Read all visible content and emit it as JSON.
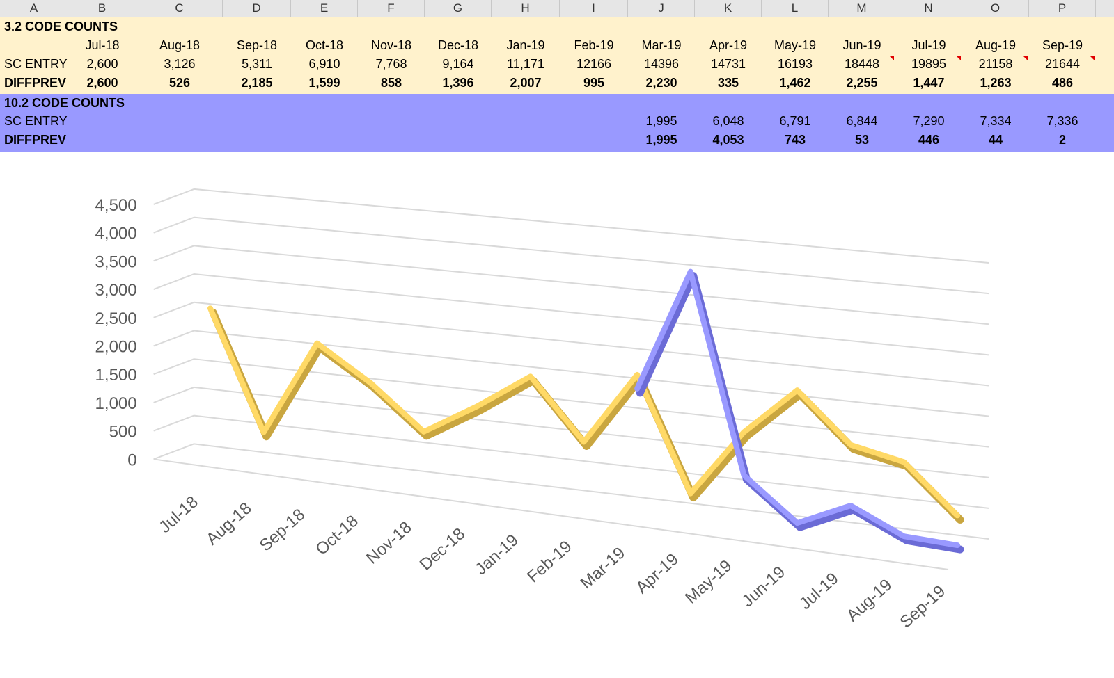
{
  "sheet": {
    "column_letters": [
      "A",
      "B",
      "C",
      "D",
      "E",
      "F",
      "G",
      "H",
      "I",
      "J",
      "K",
      "L",
      "M",
      "N",
      "O",
      "P"
    ],
    "months": [
      "Jul-18",
      "Aug-18",
      "Sep-18",
      "Oct-18",
      "Nov-18",
      "Dec-18",
      "Jan-19",
      "Feb-19",
      "Mar-19",
      "Apr-19",
      "May-19",
      "Jun-19",
      "Jul-19",
      "Aug-19",
      "Sep-19"
    ],
    "section_32": {
      "title": "3.2 CODE COUNTS",
      "rows": [
        {
          "label": "SC ENTRY",
          "bold": false,
          "values": [
            "2,600",
            "3,126",
            "5,311",
            "6,910",
            "7,768",
            "9,164",
            "11,171",
            "12166",
            "14396",
            "14731",
            "16193",
            "18448",
            "19895",
            "21158",
            "21644"
          ]
        },
        {
          "label": "DIFFPREV",
          "bold": true,
          "values": [
            "2,600",
            "526",
            "2,185",
            "1,599",
            "858",
            "1,396",
            "2,007",
            "995",
            "2,230",
            "335",
            "1,462",
            "2,255",
            "1,447",
            "1,263",
            "486"
          ]
        }
      ]
    },
    "section_102": {
      "title": "10.2 CODE COUNTS",
      "rows": [
        {
          "label": "SC ENTRY",
          "bold": false,
          "values": [
            "",
            "",
            "",
            "",
            "",
            "",
            "",
            "",
            "1,995",
            "6,048",
            "6,791",
            "6,844",
            "7,290",
            "7,334",
            "7,336"
          ]
        },
        {
          "label": "DIFFPREV",
          "bold": true,
          "values": [
            "",
            "",
            "",
            "",
            "",
            "",
            "",
            "",
            "1,995",
            "4,053",
            "743",
            "53",
            "446",
            "44",
            "2"
          ]
        }
      ]
    },
    "comment_flag_color": "#e00000",
    "colors": {
      "yellow_band": "#fff2cc",
      "blue_band": "#9999ff"
    }
  },
  "chart_data": {
    "type": "line",
    "style": "3d-line",
    "categories": [
      "Jul-18",
      "Aug-18",
      "Sep-18",
      "Oct-18",
      "Nov-18",
      "Dec-18",
      "Jan-19",
      "Feb-19",
      "Mar-19",
      "Apr-19",
      "May-19",
      "Jun-19",
      "Jul-19",
      "Aug-19",
      "Sep-19"
    ],
    "y_ticks": [
      "0",
      "500",
      "1,000",
      "1,500",
      "2,000",
      "2,500",
      "3,000",
      "3,500",
      "4,000",
      "4,500"
    ],
    "ylim": [
      0,
      4500
    ],
    "grid": true,
    "series": [
      {
        "color": "#ffd966",
        "dark": "#c9a640",
        "values": [
          2600,
          526,
          2185,
          1599,
          858,
          1396,
          2007,
          995,
          2230,
          335,
          1462,
          2255,
          1447,
          1263,
          486
        ]
      },
      {
        "color": "#9999ff",
        "dark": "#6b6bd6",
        "values": [
          null,
          null,
          null,
          null,
          null,
          null,
          null,
          null,
          1995,
          4053,
          743,
          53,
          446,
          44,
          2
        ]
      }
    ]
  }
}
